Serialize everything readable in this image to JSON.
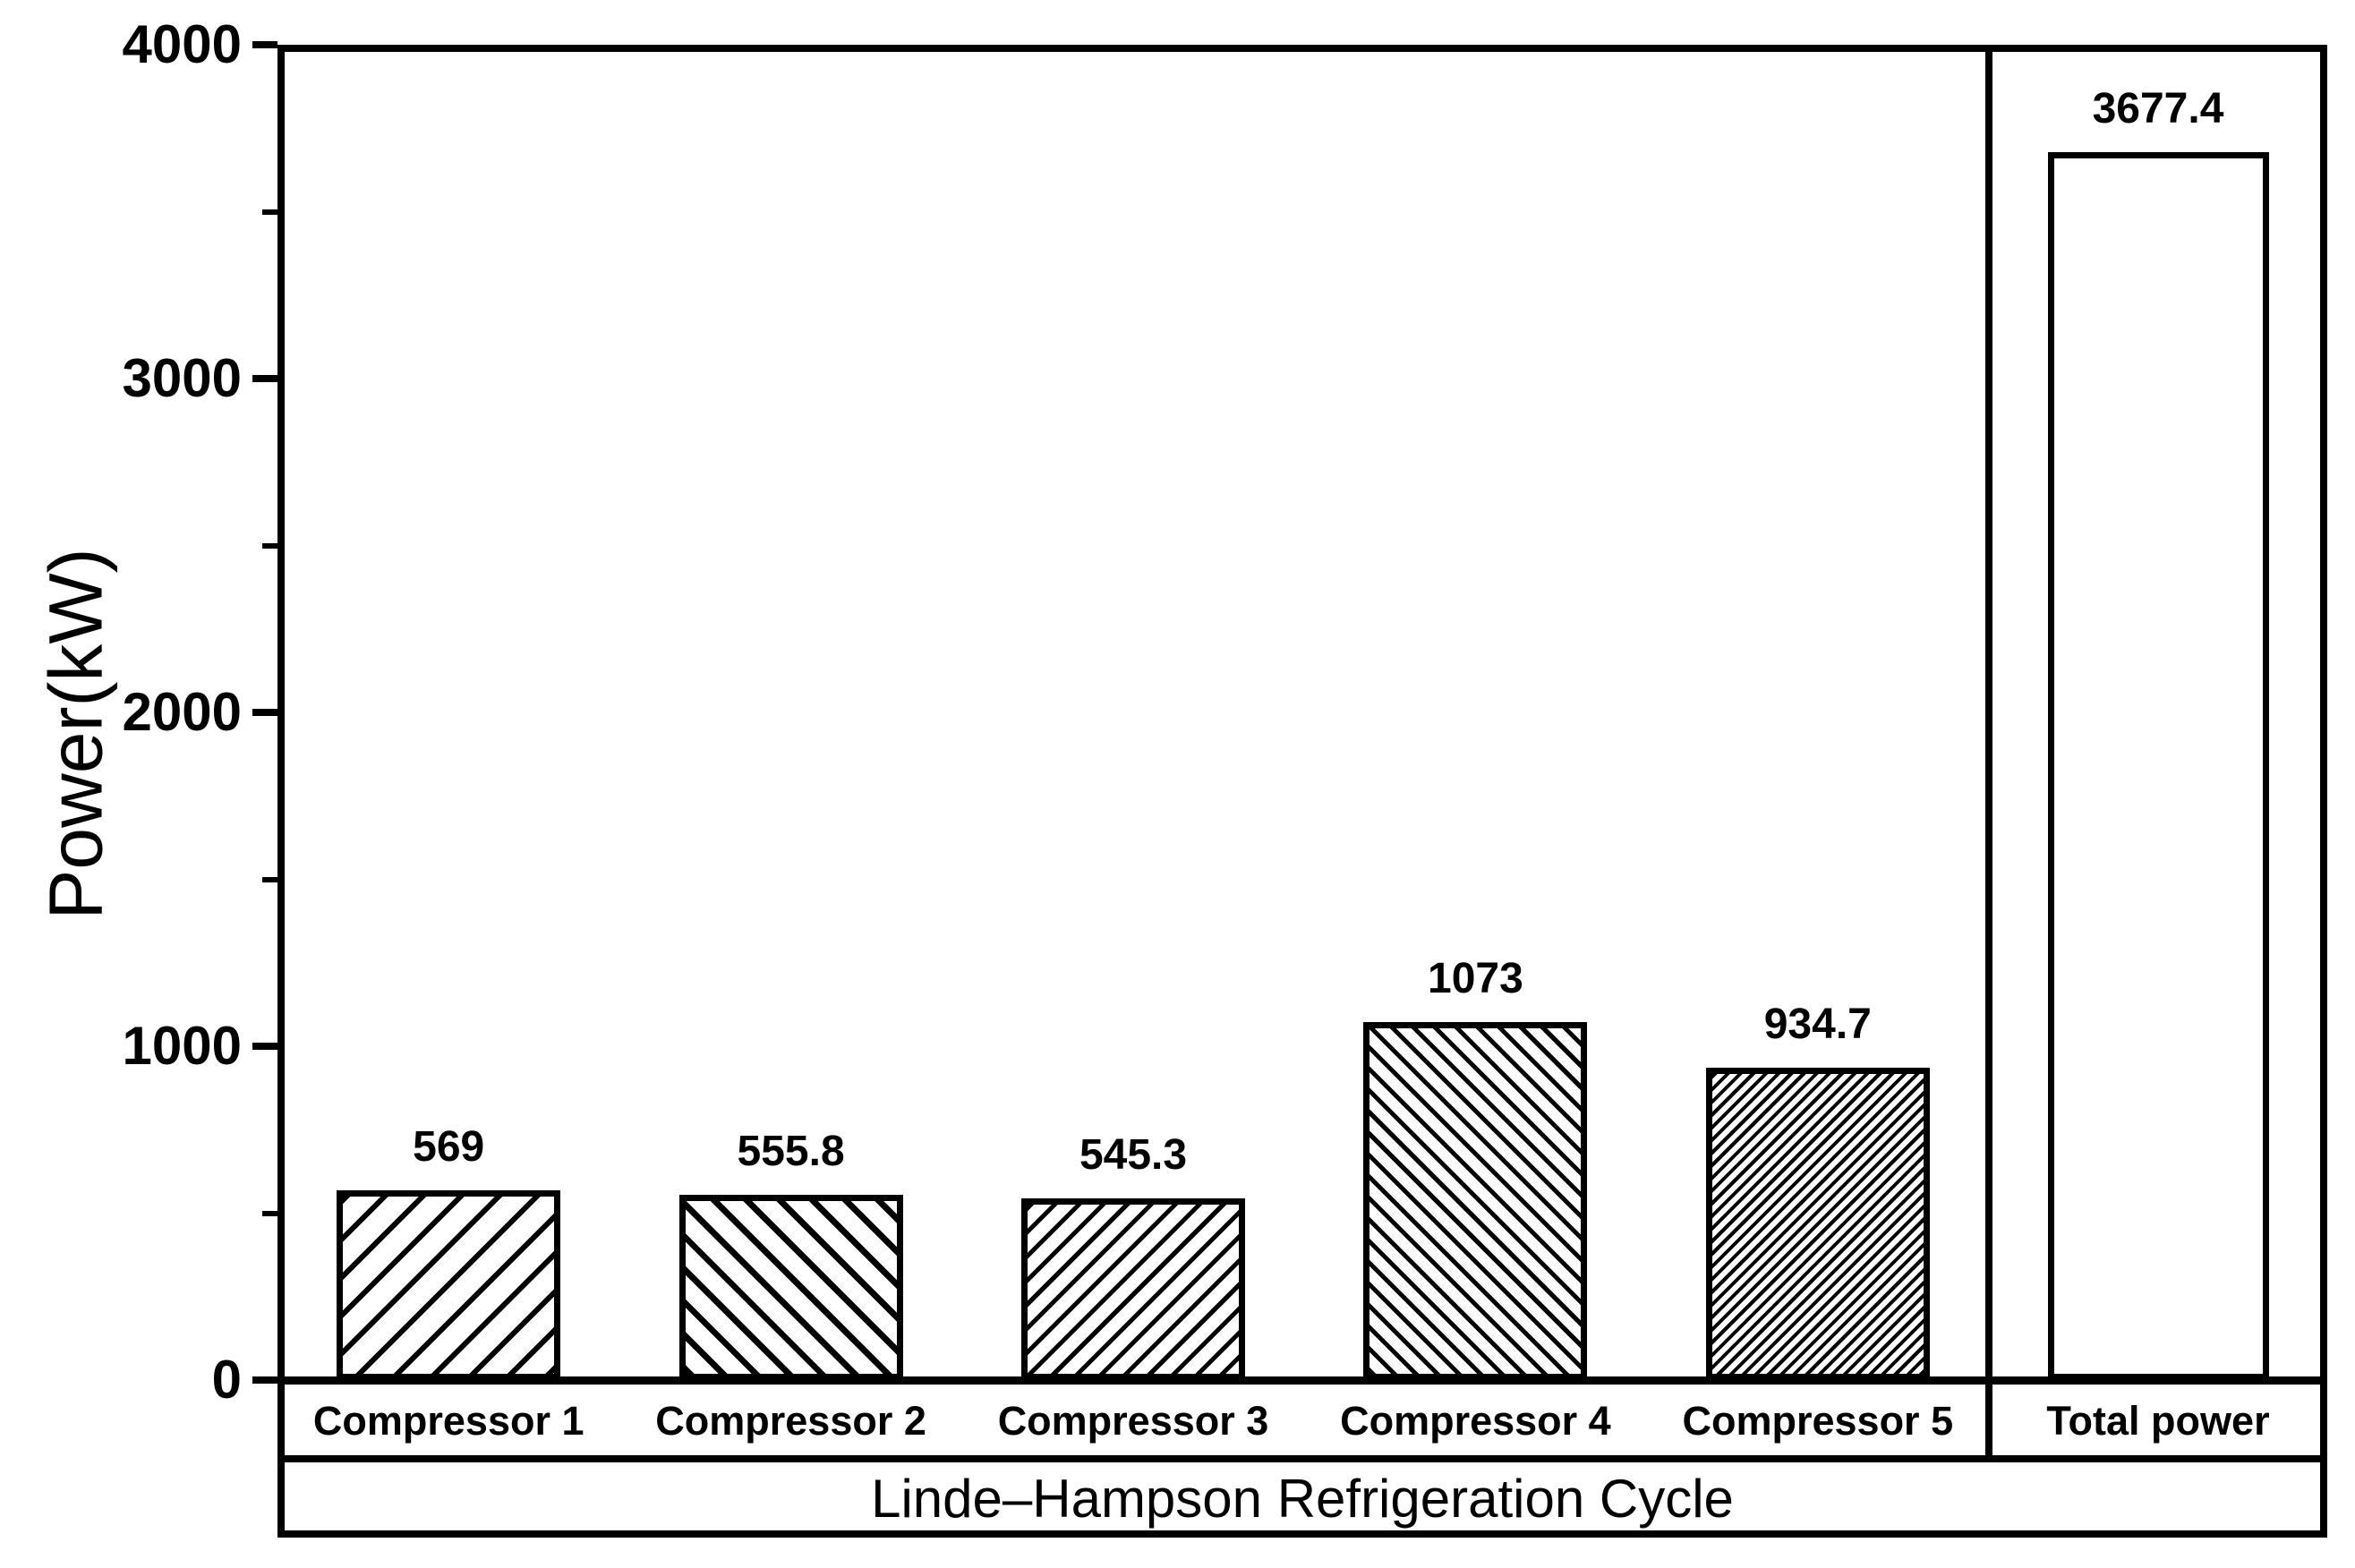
{
  "chart_data": {
    "type": "bar",
    "title": "",
    "xlabel": "Linde–Hampson Refrigeration Cycle",
    "ylabel": "Power(kW)",
    "ylim": [
      0,
      4000
    ],
    "ytick_major": [
      0,
      1000,
      2000,
      3000,
      4000
    ],
    "ytick_labels": [
      "0",
      "1000",
      "2000",
      "3000",
      "4000"
    ],
    "ytick_minor": [
      500,
      1500,
      2500,
      3500
    ],
    "grid": false,
    "legend": "none",
    "background": "#ffffff",
    "bar_fill": "#ffffff",
    "bar_edge": "#000000",
    "text_color": "#000000",
    "panels": [
      {
        "name": "compressors",
        "bars": [
          {
            "category": "Compressor 1",
            "value": 569,
            "label": "569",
            "hatch": "diagonal-forward-wide"
          },
          {
            "category": "Compressor 2",
            "value": 555.8,
            "label": "555.8",
            "hatch": "diagonal-back-medium"
          },
          {
            "category": "Compressor 3",
            "value": 545.3,
            "label": "545.3",
            "hatch": "diagonal-forward-medium"
          },
          {
            "category": "Compressor 4",
            "value": 1073,
            "label": "1073",
            "hatch": "diagonal-back-dense"
          },
          {
            "category": "Compressor 5",
            "value": 934.7,
            "label": "934.7",
            "hatch": "diagonal-forward-extra-dense"
          }
        ]
      },
      {
        "name": "total",
        "bars": [
          {
            "category": "Total power",
            "value": 3677.4,
            "label": "3677.4",
            "hatch": "none"
          }
        ]
      }
    ]
  }
}
